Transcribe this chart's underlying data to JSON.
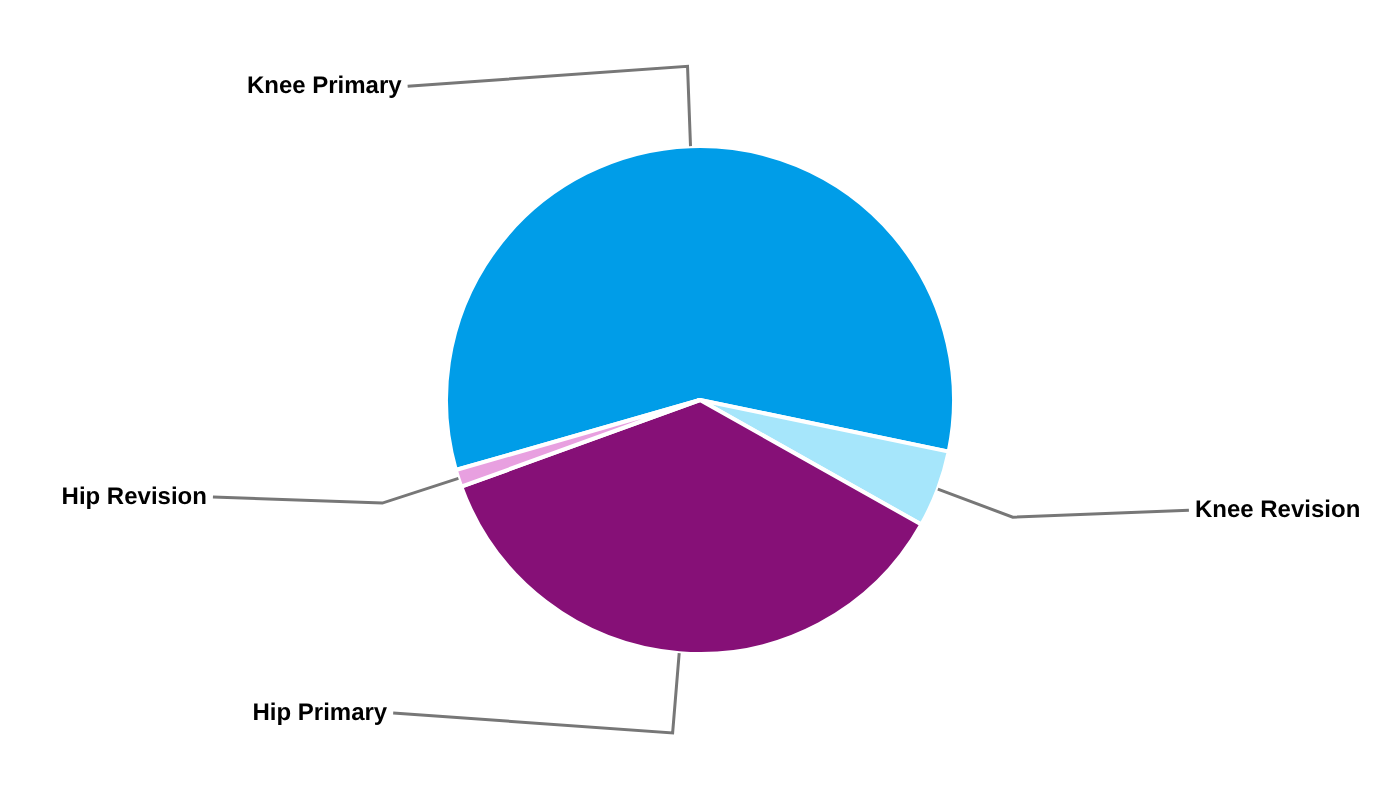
{
  "chart_data": {
    "type": "pie",
    "categories": [
      "Knee Primary",
      "Knee Revision",
      "Hip Primary",
      "Hip Revision"
    ],
    "values": [
      57.7,
      4.9,
      36.3,
      1.1
    ],
    "colors": [
      "#009de8",
      "#a6e6fb",
      "#861077",
      "#e8a0e0"
    ],
    "legend": false
  }
}
